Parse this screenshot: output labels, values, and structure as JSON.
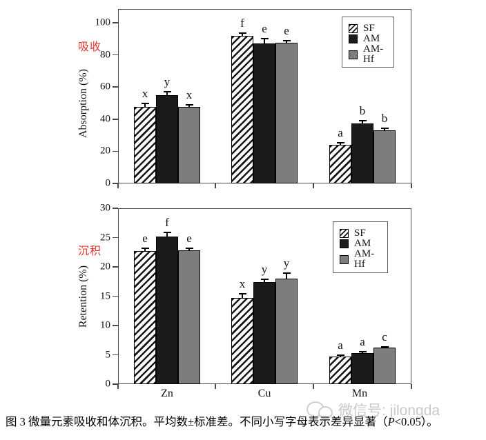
{
  "figure": {
    "caption": {
      "part1": "图 3  微量元素吸收和体沉积。平均数±标准差。不同小写字母表示差异显著（",
      "p_italic": "P",
      "part2": "<0.05）。"
    },
    "watermark": {
      "icon": "wechat-icon",
      "text": "微信号: jilongda"
    }
  },
  "colors": {
    "am_black": "#1b1b1b",
    "am_hf_gray": "#7d7d7d",
    "red_label": "#e63329",
    "watermark_gray": "#c9c9c9",
    "axis": "#4a4a4a"
  },
  "chart_data": [
    {
      "type": "bar",
      "panel_label_cn": "吸收",
      "ylabel": "Absorption (%)",
      "ylim": [
        0,
        100
      ],
      "yticks": [
        0,
        20,
        40,
        60,
        80,
        100
      ],
      "categories": [
        "Zn",
        "Cu",
        "Mn"
      ],
      "show_category_labels": false,
      "grid": false,
      "legend_position": "top-right",
      "legend": [
        "SF",
        "AM",
        "AM-Hf"
      ],
      "series": [
        {
          "name": "SF",
          "style": "hatch",
          "values": [
            47.5,
            92,
            24
          ],
          "errors": [
            2.5,
            1.5,
            1.5
          ],
          "letters": [
            "x",
            "f",
            "a"
          ]
        },
        {
          "name": "AM",
          "style": "black",
          "values": [
            55,
            87,
            37.5
          ],
          "errors": [
            2,
            3,
            1.5
          ],
          "letters": [
            "y",
            "e",
            "b"
          ]
        },
        {
          "name": "AM-Hf",
          "style": "gray",
          "values": [
            47.5,
            87.5,
            33
          ],
          "errors": [
            1.5,
            1.5,
            1.5
          ],
          "letters": [
            "x",
            "e",
            "b"
          ]
        }
      ]
    },
    {
      "type": "bar",
      "panel_label_cn": "沉积",
      "ylabel": "Retention (%)",
      "ylim": [
        0,
        30
      ],
      "yticks": [
        0,
        5,
        10,
        15,
        20,
        25,
        30
      ],
      "categories": [
        "Zn",
        "Cu",
        "Mn"
      ],
      "show_category_labels": true,
      "grid": false,
      "legend_position": "top-right",
      "legend": [
        "SF",
        "AM",
        "AM-Hf"
      ],
      "series": [
        {
          "name": "SF",
          "style": "hatch",
          "values": [
            22.7,
            14.7,
            4.7
          ],
          "errors": [
            0.5,
            0.7,
            0.3
          ],
          "letters": [
            "e",
            "x",
            "a"
          ]
        },
        {
          "name": "AM",
          "style": "black",
          "values": [
            25.2,
            17.4,
            5.3
          ],
          "errors": [
            0.7,
            0.5,
            0.2
          ],
          "letters": [
            "f",
            "y",
            "a"
          ]
        },
        {
          "name": "AM-Hf",
          "style": "gray",
          "values": [
            22.8,
            18.0,
            6.2
          ],
          "errors": [
            0.4,
            0.9,
            0.2
          ],
          "letters": [
            "e",
            "y",
            "c"
          ]
        }
      ]
    }
  ]
}
